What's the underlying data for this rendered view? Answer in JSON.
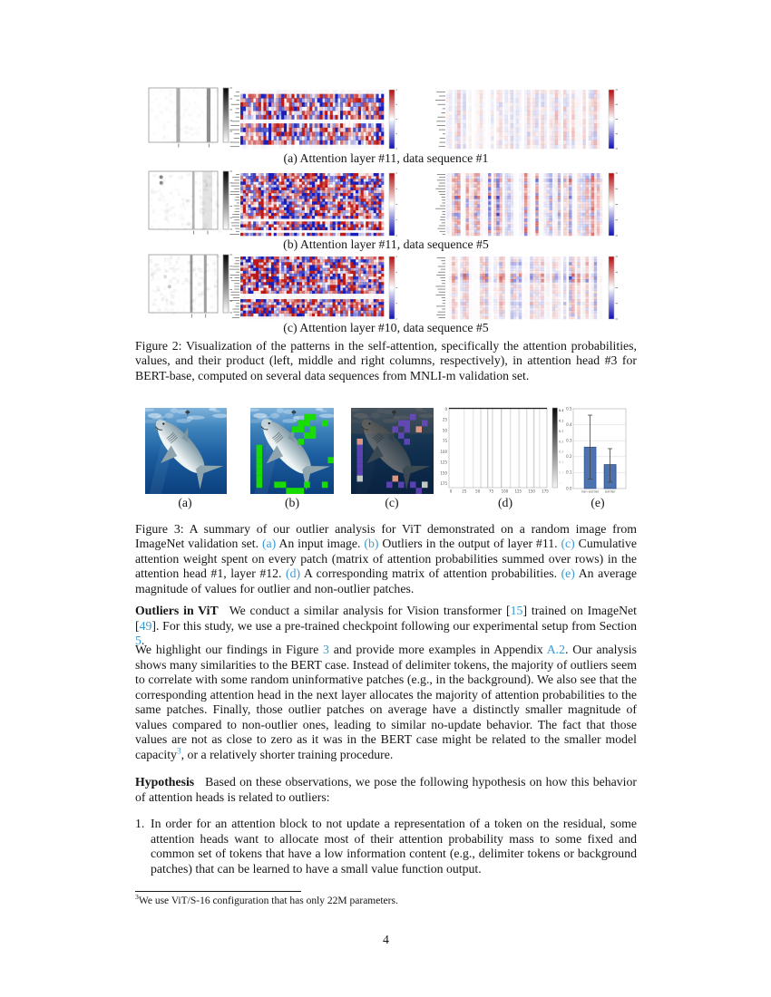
{
  "link_color": "#3a9ad2",
  "page_number": "4",
  "figure2": {
    "rows": [
      {
        "caption": "(a) Attention layer #11, data sequence #1",
        "seed": 11,
        "rows": 14,
        "white_rows": [
          0,
          7,
          13
        ],
        "gray": {
          "texture": 0.03,
          "bars": [
            [
              0.4,
              0.055,
              0.45
            ],
            [
              0.84,
              0.055,
              0.6
            ]
          ],
          "dots": []
        },
        "product": {
          "base": 0.26,
          "boost": []
        }
      },
      {
        "caption": "(b) Attention layer #11, data sequence #5",
        "seed": 57,
        "rows": 22,
        "white_rows": [
          16,
          20
        ],
        "gray": {
          "texture": 0.06,
          "bars": [
            [
              0.63,
              0.035,
              0.4
            ],
            [
              0.78,
              0.14,
              0.15
            ]
          ],
          "dots": [
            [
              0.18,
              0.1,
              0.55
            ],
            [
              0.18,
              0.2,
              0.5
            ]
          ]
        },
        "product": {
          "base": 0.5,
          "boost": [
            [
              2,
              1.6
            ],
            [
              8,
              1.5
            ],
            [
              14,
              1.3
            ]
          ]
        }
      },
      {
        "caption": "(c) Attention layer #10, data sequence #5",
        "seed": 93,
        "rows": 22,
        "white_rows": [
          13,
          14,
          21
        ],
        "gray": {
          "texture": 0.07,
          "bars": [
            [
              0.6,
              0.035,
              0.55
            ],
            [
              0.8,
              0.04,
              0.5
            ]
          ],
          "dots": [
            [
              0.3,
              0.55,
              0.25
            ],
            [
              0.24,
              0.38,
              0.12
            ]
          ]
        },
        "product": {
          "base": 0.3,
          "boost": [
            [
              2,
              1.5
            ],
            [
              6,
              2.4
            ],
            [
              7,
              2.6
            ],
            [
              8,
              2.2
            ],
            [
              16,
              1.6
            ]
          ]
        }
      }
    ],
    "caption": "Figure 2: Visualization of the patterns in the self-attention, specifically the attention probabilities, values, and their product (left, middle and right columns, respectively), in attention head #3 for BERT-base, computed on several data sequences from MNLI-m validation set."
  },
  "figure3": {
    "labels": [
      "(a)",
      "(b)",
      "(c)",
      "(d)",
      "(e)"
    ],
    "caption_segments": [
      {
        "t": "Figure 3: A summary of our outlier analysis for ViT demonstrated on a random image from ImageNet validation set. "
      },
      {
        "t": "(a)",
        "c": "link"
      },
      {
        "t": " An input image. "
      },
      {
        "t": "(b)",
        "c": "link"
      },
      {
        "t": " Outliers in the output of layer #11. "
      },
      {
        "t": "(c)",
        "c": "link"
      },
      {
        "t": " Cumulative attention weight spent on every patch (matrix of attention probabilities summed over rows) in the attention head #1, layer #12. "
      },
      {
        "t": "(d)",
        "c": "link"
      },
      {
        "t": " A corresponding matrix of attention probabilities. "
      },
      {
        "t": "(e)",
        "c": "link"
      },
      {
        "t": " An average magnitude of values for outlier and non-outlier patches."
      }
    ],
    "green_patches": [
      [
        1,
        9
      ],
      [
        1,
        10
      ],
      [
        2,
        8
      ],
      [
        2,
        9
      ],
      [
        2,
        12
      ],
      [
        3,
        7
      ],
      [
        3,
        8
      ],
      [
        3,
        10
      ],
      [
        4,
        9
      ],
      [
        4,
        10
      ],
      [
        5,
        8
      ],
      [
        8,
        13
      ],
      [
        6,
        1
      ],
      [
        7,
        1
      ],
      [
        8,
        1
      ],
      [
        9,
        1
      ],
      [
        10,
        1
      ],
      [
        11,
        1
      ],
      [
        12,
        1
      ],
      [
        12,
        4
      ],
      [
        12,
        5
      ],
      [
        13,
        6
      ],
      [
        13,
        7
      ],
      [
        13,
        8
      ],
      [
        12,
        9
      ],
      [
        12,
        12
      ]
    ],
    "weight_patches": [
      [
        5,
        1,
        "pink"
      ],
      [
        6,
        1,
        "purple"
      ],
      [
        7,
        1,
        "purple"
      ],
      [
        8,
        1,
        "purple"
      ],
      [
        9,
        1,
        "purple"
      ],
      [
        10,
        1,
        "purple"
      ],
      [
        11,
        1,
        "gray"
      ],
      [
        1,
        10,
        "purple"
      ],
      [
        2,
        8,
        "purple"
      ],
      [
        2,
        9,
        "purple"
      ],
      [
        2,
        12,
        "purple"
      ],
      [
        3,
        7,
        "purple"
      ],
      [
        3,
        9,
        "purple"
      ],
      [
        3,
        11,
        "pink"
      ],
      [
        4,
        8,
        "purple"
      ],
      [
        5,
        9,
        "purple"
      ],
      [
        11,
        7,
        "pink"
      ],
      [
        12,
        6,
        "purple"
      ],
      [
        12,
        8,
        "purple"
      ],
      [
        12,
        10,
        "purple"
      ],
      [
        12,
        12,
        "gray"
      ],
      [
        13,
        11,
        "purple"
      ]
    ],
    "attn_matrix": {
      "yticks": [
        "0",
        "25",
        "50",
        "75",
        "100",
        "125",
        "150",
        "175"
      ],
      "xticks": [
        "0",
        "25",
        "50",
        "75",
        "100",
        "125",
        "150",
        "175"
      ],
      "lines": [
        [
          0.15,
          0.18
        ],
        [
          0.24,
          0.2
        ],
        [
          0.32,
          0.3
        ],
        [
          0.39,
          0.38
        ],
        [
          0.44,
          0.3
        ],
        [
          0.53,
          0.42
        ],
        [
          0.62,
          0.25
        ],
        [
          0.71,
          0.3
        ],
        [
          0.79,
          0.28
        ],
        [
          0.86,
          0.4
        ],
        [
          0.92,
          0.2
        ]
      ],
      "colorbar_ticks": [
        "0.40",
        "0.35",
        "0.30",
        "0.25",
        "0.20",
        "0.15",
        "0.10",
        "0.05"
      ]
    },
    "bar_chart": {
      "type": "bar",
      "categories": [
        "non-outlier",
        "outlier"
      ],
      "values": [
        0.26,
        0.15
      ],
      "err_top": [
        0.46,
        0.25
      ],
      "err_bot": [
        0.06,
        0.04
      ],
      "ymax": 0.5,
      "yticks": [
        "0.0",
        "0.1",
        "0.2",
        "0.3",
        "0.4",
        "0.5"
      ],
      "bar_color": "#4C72B0"
    }
  },
  "paragraphs": {
    "vit_segments": [
      {
        "t": "Outliers in ViT",
        "c": "bh"
      },
      {
        "t": "We conduct a similar analysis for Vision transformer ["
      },
      {
        "t": "15",
        "c": "link"
      },
      {
        "t": "] trained on ImageNet ["
      },
      {
        "t": "49",
        "c": "link"
      },
      {
        "t": "]. For this study, we use a pre-trained checkpoint following our experimental setup from Section "
      },
      {
        "t": "5",
        "c": "link"
      },
      {
        "t": "."
      }
    ],
    "highlight_segments": [
      {
        "t": "We highlight our findings in Figure "
      },
      {
        "t": "3",
        "c": "link"
      },
      {
        "t": " and provide more examples in Appendix "
      },
      {
        "t": "A.2",
        "c": "link"
      },
      {
        "t": ". Our analysis shows many similarities to the BERT case. Instead of delimiter tokens, the majority of outliers seem to correlate with some random uninformative patches (e.g., in the background). We also see that the corresponding attention head in the next layer allocates the majority of attention probabilities to the same patches. Finally, those outlier patches on average have a distinctly smaller magnitude of values compared to non-outlier ones, leading to similar no-update behavior. The fact that those values are not as close to zero as it was in the BERT case might be related to the smaller model capacity"
      },
      {
        "t": "3",
        "c": "suplink"
      },
      {
        "t": ", or a relatively shorter training procedure."
      }
    ],
    "hypothesis_segments": [
      {
        "t": "Hypothesis",
        "c": "bh"
      },
      {
        "t": "Based on these observations, we pose the following hypothesis on how this behavior of attention heads is related to outliers:"
      }
    ],
    "list_marker": "1.",
    "list_item": "In order for an attention block to not update a representation of a token on the residual, some attention heads want to allocate most of their attention probability mass to some fixed and common set of tokens that have a low information content (e.g., delimiter tokens or background patches) that can be learned to have a small value function output."
  },
  "footnote": {
    "marker": "3",
    "text": "We use ViT/S-16 configuration that has only 22M parameters."
  }
}
